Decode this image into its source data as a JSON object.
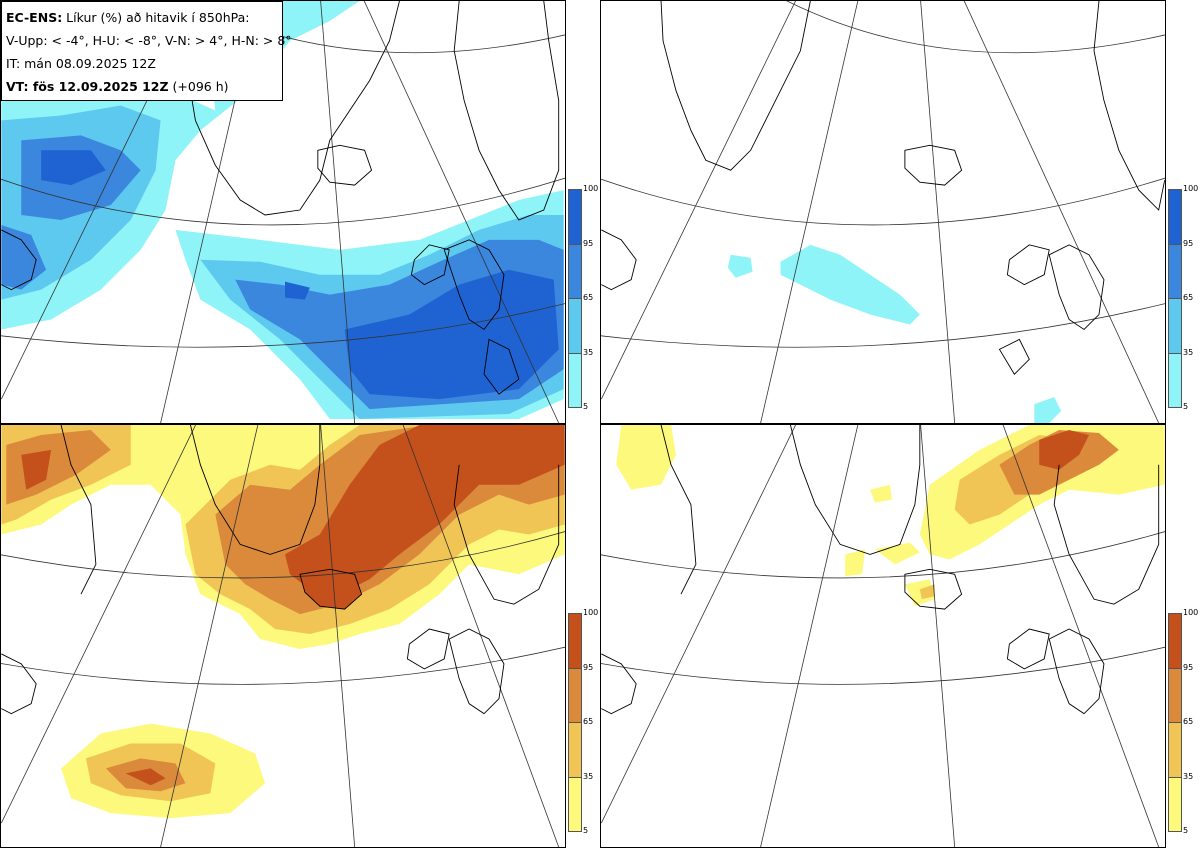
{
  "info": {
    "line1_bold": "EC-ENS:",
    "line1_rest": " Líkur (%) að hitavik í 850hPa:",
    "line2": "V-Upp: < -4°, H-U: < -8°, V-N: > 4°, H-N: > 8°",
    "line3": "IT: mán 08.09.2025 12Z",
    "line4_bold": "VT: fös 12.09.2025 12Z",
    "line4_rest": " (+096 h)"
  },
  "panels": [
    {
      "id": "top-left",
      "quantity": "V-Upp",
      "colorbar": "blue"
    },
    {
      "id": "top-right",
      "quantity": "H-U",
      "colorbar": "blue"
    },
    {
      "id": "bottom-left",
      "quantity": "V-N",
      "colorbar": "orange"
    },
    {
      "id": "bottom-right",
      "quantity": "H-N",
      "colorbar": "orange"
    }
  ],
  "colorbars": {
    "ticks": [
      "100",
      "95",
      "65",
      "35",
      "5"
    ],
    "blue": [
      "#1f63d2",
      "#3b87de",
      "#5ec9ef",
      "#8ff4f8"
    ],
    "orange": [
      "#c4501c",
      "#da8a3a",
      "#f0c556",
      "#fdf97c"
    ]
  }
}
